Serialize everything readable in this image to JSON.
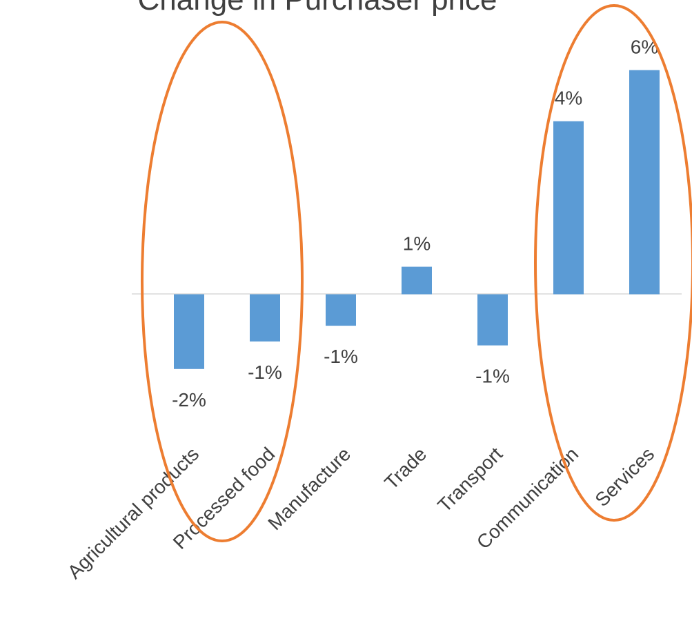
{
  "chart_data": {
    "type": "bar",
    "title": "Change in Purchaser price",
    "categories": [
      "Agricultural products",
      "Processed food",
      "Manufacture",
      "Trade",
      "Transport",
      "Communication",
      "Services"
    ],
    "values": [
      -1.9,
      -1.2,
      -0.8,
      0.7,
      -1.3,
      4.4,
      5.7
    ],
    "value_labels": [
      "-2%",
      "-1%",
      "-1%",
      "1%",
      "-1%",
      "4%",
      "6%"
    ],
    "color": "#5b9bd5",
    "ylim": [
      -3.5,
      6.5
    ]
  }
}
